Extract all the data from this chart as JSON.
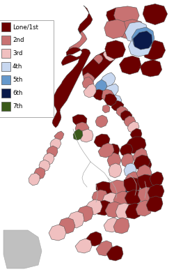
{
  "fig_width": 2.5,
  "fig_height": 3.9,
  "dpi": 100,
  "bg_color": "#FFFFFF",
  "legend_items": [
    {
      "label": "Lone/1st",
      "color": "#6B0000"
    },
    {
      "label": "2nd",
      "color": "#C87272"
    },
    {
      "label": "3rd",
      "color": "#F0C0C0"
    },
    {
      "label": "4th",
      "color": "#C8D8F0"
    },
    {
      "label": "5th",
      "color": "#6699CC"
    },
    {
      "label": "6th",
      "color": "#0A1A4A"
    },
    {
      "label": "7th",
      "color": "#3A5A1A"
    }
  ],
  "luzon_color": "#C87272",
  "mindanao_color": "#C87272",
  "dark_red": "#6B0000",
  "medium_red": "#C87272",
  "light_pink": "#F0C0C0",
  "light_blue": "#C8D8F0",
  "medium_blue": "#6699CC",
  "dark_navy": "#0A1A4A",
  "olive_green": "#3A5A1A",
  "gray": "#AAAAAA",
  "border_lw": 0.4,
  "inset_border_color": "#AAAAAA"
}
